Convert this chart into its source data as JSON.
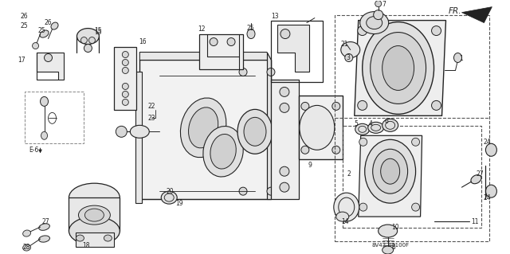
{
  "background_color": "#ffffff",
  "line_color": "#222222",
  "fig_width": 6.4,
  "fig_height": 3.19,
  "dpi": 100,
  "diagram_code": "8V43-B0100F",
  "fr_text": "FR.",
  "e6_text": "E-6"
}
